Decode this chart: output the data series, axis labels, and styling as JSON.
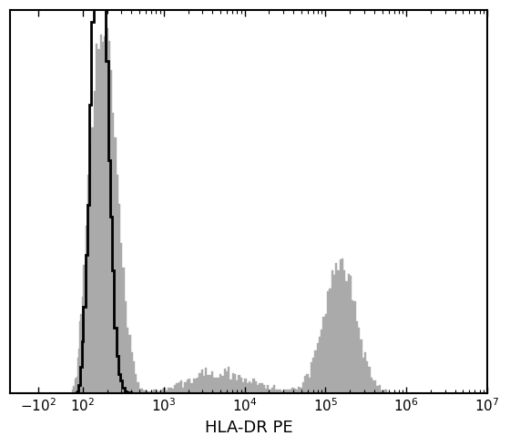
{
  "xlabel": "HLA-DR PE",
  "background_color": "#ffffff",
  "plot_bg_color": "#ffffff",
  "hist_fill_color": "#aaaaaa",
  "isotype_line_color": "#000000",
  "xlabel_fontsize": 13,
  "tick_fontsize": 11,
  "ylim_min": 0,
  "ylim_max": 1.05,
  "linthresh": 100,
  "linscale": 0.25
}
